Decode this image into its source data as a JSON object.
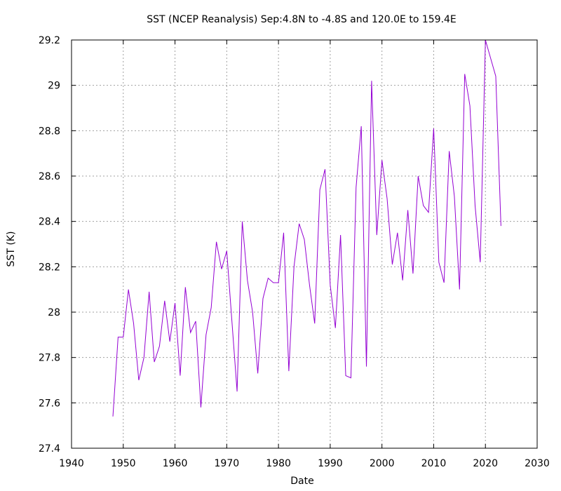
{
  "chart_data": {
    "type": "line",
    "title": "SST (NCEP Reanalysis) Sep:4.8N to -4.8S and 120.0E to 159.4E",
    "xlabel": "Date",
    "ylabel": "SST (K)",
    "xlim": [
      1940,
      2030
    ],
    "ylim": [
      27.4,
      29.2
    ],
    "xticks": [
      1940,
      1950,
      1960,
      1970,
      1980,
      1990,
      2000,
      2010,
      2020,
      2030
    ],
    "yticks": [
      27.4,
      27.6,
      27.8,
      28.0,
      28.2,
      28.4,
      28.6,
      28.8,
      29.0,
      29.2
    ],
    "ytick_labels": [
      "27.4",
      "27.6",
      "27.8",
      "28",
      "28.2",
      "28.4",
      "28.6",
      "28.8",
      "29",
      "29.2"
    ],
    "grid": true,
    "line_color": "#9400d3",
    "series": [
      {
        "x": [
          1948,
          1949,
          1950,
          1951,
          1952,
          1953,
          1954,
          1955,
          1956,
          1957,
          1958,
          1959,
          1960,
          1961,
          1962,
          1963,
          1964,
          1965,
          1966,
          1967,
          1968,
          1969,
          1970,
          1971,
          1972,
          1973,
          1974,
          1975,
          1976,
          1977,
          1978,
          1979,
          1980,
          1981,
          1982,
          1983,
          1984,
          1985,
          1986,
          1987,
          1988,
          1989,
          1990,
          1991,
          1992,
          1993,
          1994,
          1995,
          1996,
          1997,
          1998,
          1999,
          2000,
          2001,
          2002,
          2003,
          2004,
          2005,
          2006,
          2007,
          2008,
          2009,
          2010,
          2011,
          2012,
          2013,
          2014,
          2015,
          2016,
          2017,
          2018,
          2019,
          2020,
          2021,
          2022,
          2023
        ],
        "values": [
          27.54,
          27.89,
          27.89,
          28.1,
          27.95,
          27.7,
          27.8,
          28.09,
          27.78,
          27.85,
          28.05,
          27.87,
          28.04,
          27.72,
          28.11,
          27.91,
          27.96,
          27.58,
          27.9,
          28.02,
          28.31,
          28.19,
          28.27,
          27.96,
          27.65,
          28.4,
          28.14,
          28.0,
          27.73,
          28.06,
          28.15,
          28.13,
          28.13,
          28.35,
          27.74,
          28.2,
          28.39,
          28.32,
          28.12,
          27.95,
          28.54,
          28.63,
          28.12,
          27.93,
          28.34,
          27.72,
          27.71,
          28.55,
          28.82,
          27.76,
          29.02,
          28.34,
          28.67,
          28.5,
          28.21,
          28.35,
          28.14,
          28.45,
          28.17,
          28.6,
          28.47,
          28.44,
          28.81,
          28.22,
          28.13,
          28.71,
          28.51,
          28.1,
          29.05,
          28.91,
          28.47,
          28.22,
          29.2,
          29.12,
          29.04,
          28.38
        ]
      }
    ]
  }
}
